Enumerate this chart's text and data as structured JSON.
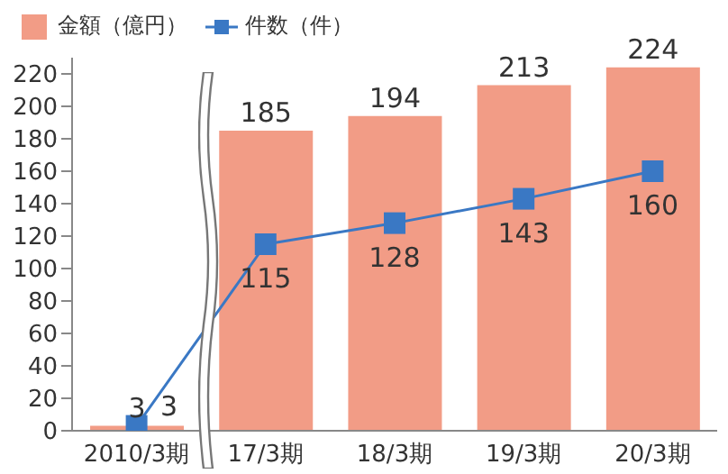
{
  "chart_data": {
    "type": "bar",
    "categories": [
      "2010/3期",
      "17/3期",
      "18/3期",
      "19/3期",
      "20/3期"
    ],
    "series": [
      {
        "name": "金額（億円）",
        "color": "#f29c86",
        "values": [
          3,
          185,
          194,
          213,
          224
        ]
      },
      {
        "name": "件数（件）",
        "type": "line",
        "color": "#3a78c4",
        "values": [
          3,
          115,
          128,
          143,
          160
        ]
      }
    ],
    "ylim": [
      0,
      230
    ],
    "yticks": [
      0,
      20,
      40,
      60,
      80,
      100,
      120,
      140,
      160,
      180,
      200,
      220
    ],
    "grid": false,
    "legend": "top left",
    "marker": "square",
    "data_labels": true
  }
}
